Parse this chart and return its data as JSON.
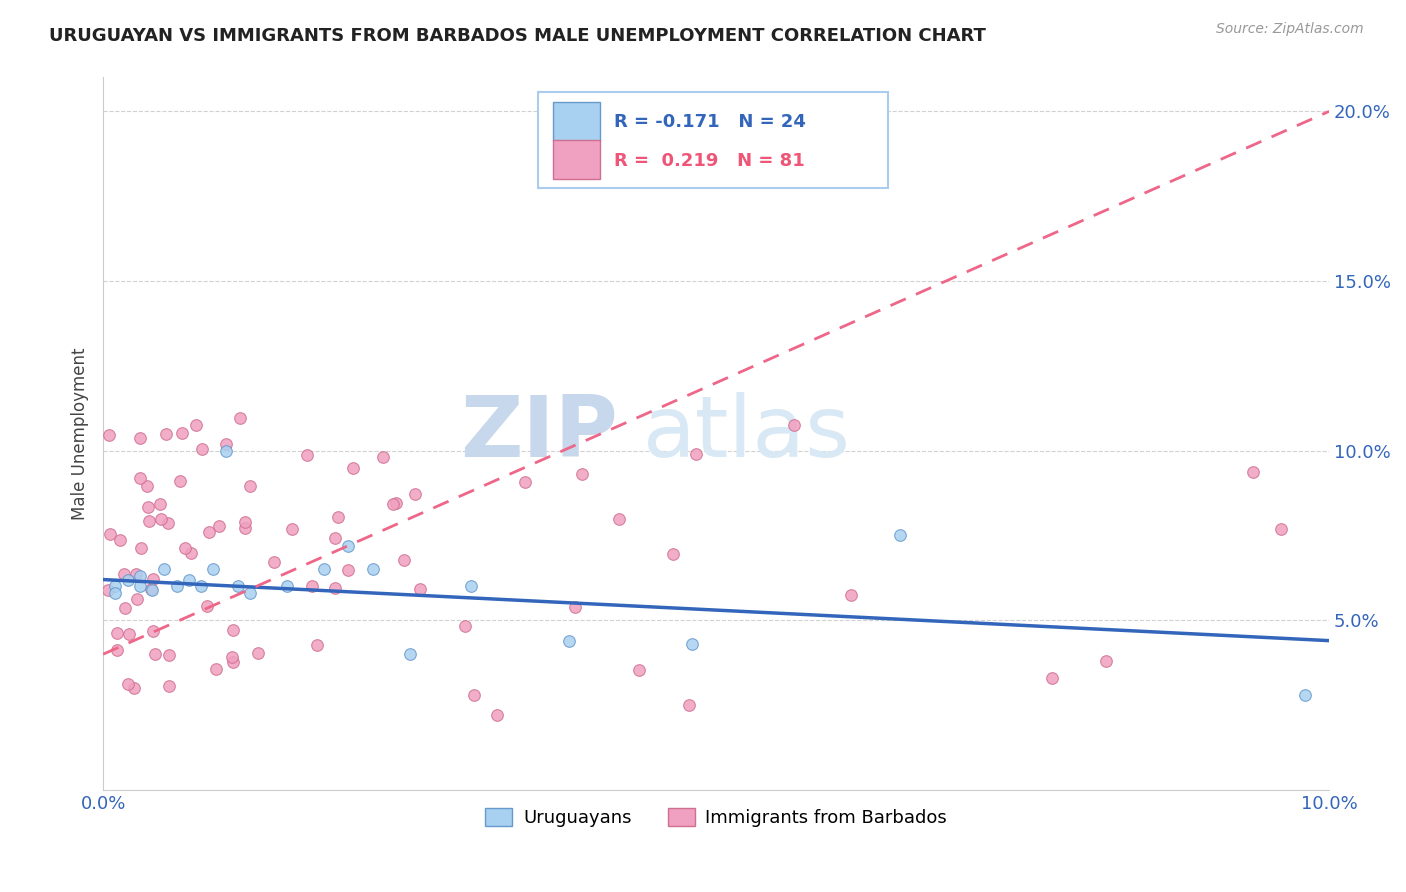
{
  "title": "URUGUAYAN VS IMMIGRANTS FROM BARBADOS MALE UNEMPLOYMENT CORRELATION CHART",
  "source": "Source: ZipAtlas.com",
  "ylabel": "Male Unemployment",
  "r_uruguayan": -0.171,
  "n_uruguayan": 24,
  "r_barbados": 0.219,
  "n_barbados": 81,
  "color_uruguayan": "#a8d0f0",
  "color_barbados": "#f0a0c0",
  "color_line_uruguayan": "#3366bb",
  "color_line_barbados": "#ee6688",
  "watermark_zip": "ZIP",
  "watermark_atlas": "atlas",
  "xlim": [
    0.0,
    0.1
  ],
  "ylim": [
    0.0,
    0.21
  ],
  "ytick_vals": [
    0.05,
    0.1,
    0.15,
    0.2
  ],
  "ytick_labels": [
    "5.0%",
    "10.0%",
    "15.0%",
    "20.0%"
  ],
  "line_uru_x0": 0.0,
  "line_uru_y0": 0.062,
  "line_uru_x1": 0.1,
  "line_uru_y1": 0.044,
  "line_bar_x0": 0.0,
  "line_bar_y0": 0.04,
  "line_bar_x1": 0.1,
  "line_bar_y1": 0.2
}
